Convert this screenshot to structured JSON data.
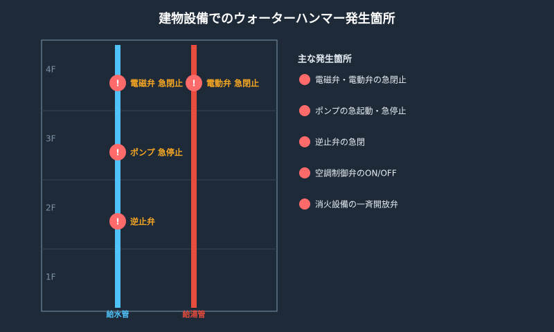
{
  "title": "建物設備でのウォーターハンマー発生箇所",
  "floors": [
    "4F",
    "3F",
    "2F",
    "1F"
  ],
  "pipes": [
    {
      "label": "給水管"
    },
    {
      "label": "給湯管"
    }
  ],
  "markers": [
    {
      "icon": "!",
      "label": "電磁弁 急閉止"
    },
    {
      "icon": "!",
      "label": "ポンプ 急停止"
    },
    {
      "icon": "!",
      "label": "逆止弁"
    },
    {
      "icon": "!",
      "label": "電動弁 急閉止"
    }
  ],
  "legend": {
    "title": "主な発生箇所",
    "items": [
      "電磁弁・電動弁の急閉止",
      "ポンプの急起動・急停止",
      "逆止弁の急閉",
      "空調制御弁のON/OFF",
      "消火設備の一斉開放弁"
    ]
  }
}
